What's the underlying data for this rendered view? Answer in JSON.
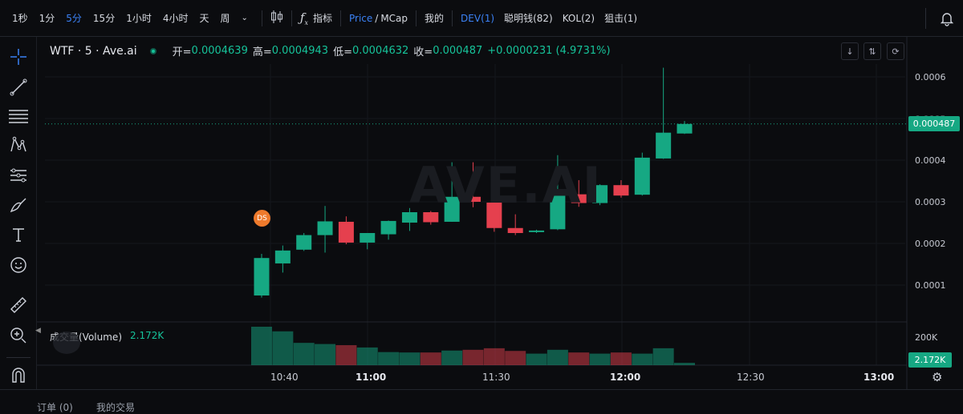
{
  "toolbar": {
    "timeframes": [
      "1秒",
      "1分",
      "5分",
      "15分",
      "1小时",
      "4小时",
      "天",
      "周"
    ],
    "active_timeframe": "5分",
    "indicators_label": "指标",
    "price_label": "Price",
    "mcap_label": "MCap",
    "mine_label": "我的",
    "dev_label": "DEV(1)",
    "smart_money_label": "聪明钱(82)",
    "kol_label": "KOL(2)",
    "snipe_label": "狙击(1)"
  },
  "legend": {
    "symbol": "WTF · 5 · Ave.ai",
    "open_label": "开=",
    "open": "0.0004639",
    "high_label": "高=",
    "high": "0.0004943",
    "low_label": "低=",
    "low": "0.0004632",
    "close_label": "收=",
    "close": "0.000487",
    "change": "+0.0000231 (4.9731%)"
  },
  "watermark": "AVE.AI",
  "price_axis": [
    "0.0006",
    "0.0005",
    "0.0004",
    "0.0003",
    "0.0002",
    "0.0001"
  ],
  "last_price": "0.000487",
  "volume": {
    "label": "成交量(Volume)",
    "value": "2.172K",
    "axis_top": "200K",
    "last": "2.172K"
  },
  "time_axis": [
    "10:40",
    "11:00",
    "11:30",
    "12:00",
    "12:30",
    "13:00"
  ],
  "marker": "DS",
  "bottom": {
    "orders": "订单 (0)",
    "my_trades": "我的交易"
  },
  "colors": {
    "up": "#16a883",
    "down": "#e5404e"
  },
  "chart_data": {
    "type": "candlestick",
    "y_range": [
      0,
      0.00065
    ],
    "candles": [
      {
        "time": "10:35",
        "open": 7.5e-05,
        "high": 0.000175,
        "low": 7e-05,
        "close": 0.000165
      },
      {
        "time": "10:40",
        "open": 0.000152,
        "high": 0.000195,
        "low": 0.00013,
        "close": 0.000183
      },
      {
        "time": "10:45",
        "open": 0.000185,
        "high": 0.000225,
        "low": 0.000182,
        "close": 0.00022
      },
      {
        "time": "10:50",
        "open": 0.00022,
        "high": 0.00029,
        "low": 0.000178,
        "close": 0.000253
      },
      {
        "time": "10:55",
        "open": 0.000252,
        "high": 0.000265,
        "low": 0.000198,
        "close": 0.000202
      },
      {
        "time": "11:00",
        "open": 0.000202,
        "high": 0.000225,
        "low": 0.000186,
        "close": 0.000225
      },
      {
        "time": "11:05",
        "open": 0.000222,
        "high": 0.000255,
        "low": 0.000209,
        "close": 0.000254
      },
      {
        "time": "11:10",
        "open": 0.00025,
        "high": 0.000285,
        "low": 0.00023,
        "close": 0.000275
      },
      {
        "time": "11:15",
        "open": 0.000275,
        "high": 0.000278,
        "low": 0.000245,
        "close": 0.000251
      },
      {
        "time": "11:20",
        "open": 0.000252,
        "high": 0.000395,
        "low": 0.000252,
        "close": 0.000312
      },
      {
        "time": "11:25",
        "open": 0.000312,
        "high": 0.000395,
        "low": 0.000287,
        "close": 0.0003
      },
      {
        "time": "11:30",
        "open": 0.000298,
        "high": 0.000298,
        "low": 0.000228,
        "close": 0.000237
      },
      {
        "time": "11:35",
        "open": 0.000237,
        "high": 0.00027,
        "low": 0.00022,
        "close": 0.000225
      },
      {
        "time": "11:40",
        "open": 0.000228,
        "high": 0.000233,
        "low": 0.000225,
        "close": 0.000231
      },
      {
        "time": "11:45",
        "open": 0.000234,
        "high": 0.000412,
        "low": 0.000232,
        "close": 0.000318
      },
      {
        "time": "11:50",
        "open": 0.000318,
        "high": 0.000352,
        "low": 0.000288,
        "close": 0.000297
      },
      {
        "time": "11:55",
        "open": 0.000297,
        "high": 0.000342,
        "low": 0.000292,
        "close": 0.00034
      },
      {
        "time": "12:00",
        "open": 0.00034,
        "high": 0.000352,
        "low": 0.00031,
        "close": 0.000315
      },
      {
        "time": "12:05",
        "open": 0.000317,
        "high": 0.000418,
        "low": 0.000315,
        "close": 0.000406
      },
      {
        "time": "12:10",
        "open": 0.000404,
        "high": 0.000622,
        "low": 0.000403,
        "close": 0.000466
      },
      {
        "time": "12:15",
        "open": 0.000464,
        "high": 0.000494,
        "low": 0.000463,
        "close": 0.000487
      }
    ],
    "volumes": [
      100,
      88,
      58,
      55,
      52,
      46,
      34,
      33,
      33,
      38,
      40,
      44,
      37,
      30,
      40,
      33,
      30,
      33,
      30,
      44,
      6
    ]
  }
}
